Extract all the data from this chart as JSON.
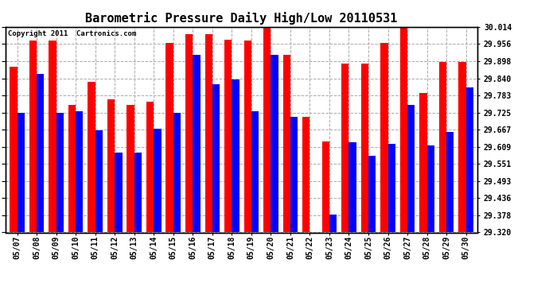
{
  "title": "Barometric Pressure Daily High/Low 20110531",
  "copyright": "Copyright 2011  Cartronics.com",
  "dates": [
    "05/07",
    "05/08",
    "05/09",
    "05/10",
    "05/11",
    "05/12",
    "05/13",
    "05/14",
    "05/15",
    "05/16",
    "05/17",
    "05/18",
    "05/19",
    "05/20",
    "05/21",
    "05/22",
    "05/23",
    "05/24",
    "05/25",
    "05/26",
    "05/27",
    "05/28",
    "05/29",
    "05/30"
  ],
  "highs": [
    29.878,
    29.968,
    29.968,
    29.75,
    29.828,
    29.77,
    29.75,
    29.76,
    29.96,
    29.99,
    29.99,
    29.97,
    29.968,
    30.014,
    29.92,
    29.71,
    29.628,
    29.89,
    29.89,
    29.96,
    30.014,
    29.79,
    29.895,
    29.895
  ],
  "lows": [
    29.725,
    29.855,
    29.725,
    29.73,
    29.665,
    29.59,
    29.59,
    29.67,
    29.725,
    29.92,
    29.82,
    29.835,
    29.73,
    29.92,
    29.71,
    29.32,
    29.38,
    29.625,
    29.58,
    29.62,
    29.75,
    29.615,
    29.66,
    29.81
  ],
  "bar_width": 0.38,
  "high_color": "#ff0000",
  "low_color": "#0000ff",
  "background_color": "#ffffff",
  "grid_color": "#aaaaaa",
  "ymin": 29.32,
  "ymax": 30.014,
  "yticks": [
    29.32,
    29.378,
    29.436,
    29.493,
    29.551,
    29.609,
    29.667,
    29.725,
    29.783,
    29.84,
    29.898,
    29.956,
    30.014
  ],
  "title_fontsize": 11,
  "copyright_fontsize": 6.5,
  "tick_fontsize": 7,
  "fig_width": 6.9,
  "fig_height": 3.75,
  "dpi": 100
}
